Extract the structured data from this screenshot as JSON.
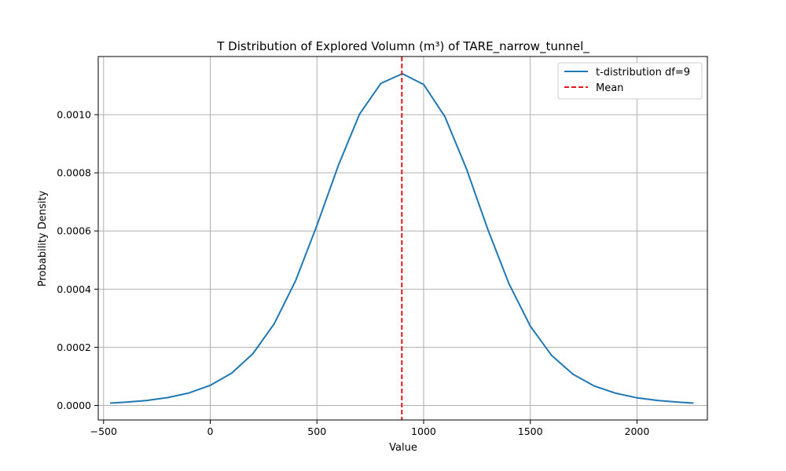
{
  "chart_data": {
    "type": "line",
    "title": "T Distribution of Explored Volumn (m³) of TARE_narrow_tunnel_",
    "xlabel": "Value",
    "ylabel": "Probability Density",
    "xlim": [
      -525,
      2330
    ],
    "ylim": [
      -5e-05,
      0.0012
    ],
    "xticks": [
      -500,
      0,
      500,
      1000,
      1500,
      2000
    ],
    "xtick_labels": [
      "−500",
      "0",
      "500",
      "1000",
      "1500",
      "2000"
    ],
    "yticks": [
      0.0,
      0.0002,
      0.0004,
      0.0006,
      0.0008,
      0.001
    ],
    "ytick_labels": [
      "0.0000",
      "0.0002",
      "0.0004",
      "0.0006",
      "0.0008",
      "0.0010"
    ],
    "grid": true,
    "legend_position": "top-right",
    "series": [
      {
        "name": "t-distribution df=9",
        "color": "#1f77b4",
        "style": "solid",
        "x": [
          -470,
          -400,
          -300,
          -200,
          -100,
          0,
          100,
          200,
          300,
          400,
          500,
          600,
          700,
          800,
          900,
          1000,
          1100,
          1200,
          1300,
          1400,
          1500,
          1600,
          1700,
          1800,
          1900,
          2000,
          2100,
          2200,
          2265
        ],
        "y": [
          8e-06,
          1.1e-05,
          1.7e-05,
          2.7e-05,
          4.3e-05,
          6.9e-05,
          0.000111,
          0.000178,
          0.000281,
          0.000429,
          0.000619,
          0.000825,
          0.001002,
          0.001108,
          0.001141,
          0.001104,
          0.000993,
          0.000815,
          0.000607,
          0.000419,
          0.000273,
          0.000172,
          0.000107,
          6.7e-05,
          4.2e-05,
          2.6e-05,
          1.7e-05,
          1.1e-05,
          8e-06
        ]
      },
      {
        "name": "Mean",
        "color": "#e31a1c",
        "style": "dashed",
        "x_value": 898
      }
    ]
  }
}
